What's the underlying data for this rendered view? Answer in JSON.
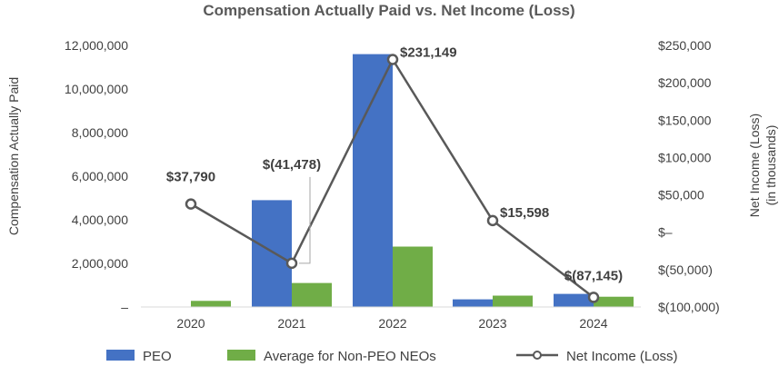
{
  "chart_data": {
    "type": "bar",
    "title": "Compensation Actually Paid vs. Net Income (Loss)",
    "categories": [
      "2020",
      "2021",
      "2022",
      "2023",
      "2024"
    ],
    "ylabel": "Compensation Actually Paid",
    "y2label": [
      "Net Income (Loss)",
      "(in thousands)"
    ],
    "ylim": [
      0,
      12000000
    ],
    "y_ticks": [
      "–",
      "2,000,000",
      "4,000,000",
      "6,000,000",
      "8,000,000",
      "10,000,000",
      "12,000,000"
    ],
    "y2lim": [
      -100000,
      250000
    ],
    "y2_ticks": [
      "$(100,000)",
      "$(50,000)",
      "$–",
      "$50,000",
      "$100,000",
      "$150,000",
      "$200,000",
      "$250,000"
    ],
    "series": [
      {
        "name": "PEO",
        "type": "bar",
        "color": "#4472C4",
        "values": [
          20000,
          4900000,
          11600000,
          350000,
          600000
        ]
      },
      {
        "name": "Average for Non-PEO NEOs",
        "type": "bar",
        "color": "#70AD47",
        "values": [
          280000,
          1100000,
          2770000,
          520000,
          470000
        ]
      },
      {
        "name": "Net Income (Loss)",
        "type": "line",
        "axis": "secondary",
        "color": "#595959",
        "values": [
          37790,
          -41478,
          231149,
          15598,
          -87145
        ],
        "labels": [
          "$37,790",
          "$(41,478)",
          "$231,149",
          "$15,598",
          "$(87,145)"
        ]
      }
    ],
    "legend": "bottom",
    "grid": false
  }
}
